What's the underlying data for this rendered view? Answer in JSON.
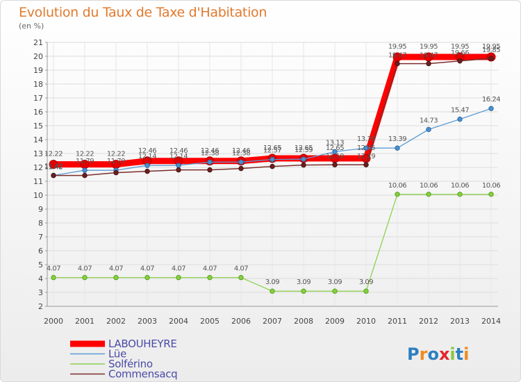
{
  "chart_data": {
    "type": "line",
    "title": "Evolution du Taux de Taxe d'Habitation",
    "unit_label": "(en %)",
    "x": [
      "2000",
      "2001",
      "2002",
      "2003",
      "2004",
      "2005",
      "2006",
      "2007",
      "2008",
      "2009",
      "2010",
      "2011",
      "2012",
      "2013",
      "2014"
    ],
    "ylim": [
      2,
      21
    ],
    "yticks": [
      2,
      3,
      4,
      5,
      6,
      7,
      8,
      9,
      10,
      11,
      12,
      13,
      14,
      15,
      16,
      17,
      18,
      19,
      20,
      21
    ],
    "grid": true,
    "legend_position": "bottom-left",
    "series": [
      {
        "name": "LABOUHEYRE",
        "color": "#ff0000",
        "values": [
          12.22,
          12.22,
          12.22,
          12.46,
          12.46,
          12.46,
          12.46,
          12.65,
          12.65,
          12.65,
          12.65,
          19.95,
          19.95,
          19.95,
          19.95
        ],
        "labels": [
          "12.22",
          "12.22",
          "12.22",
          "12.46",
          "12.46",
          "12.46",
          "12.46",
          "12.65",
          "12.65",
          "12.65",
          "12.65",
          "19.95",
          "19.95",
          "19.95",
          "19.95"
        ]
      },
      {
        "name": "Lüe",
        "color": "#5b9bd5",
        "values": [
          11.42,
          11.79,
          11.79,
          12.14,
          12.14,
          12.38,
          12.38,
          12.57,
          12.59,
          13.13,
          13.39,
          13.39,
          14.73,
          15.47,
          16.24
        ],
        "labels": [
          "11.42",
          "11.79",
          "11.79",
          "12.14",
          "12.14",
          "12.38",
          "12.38",
          "12.57",
          "12.59",
          "13.13",
          "13.39",
          "13.39",
          "14.73",
          "15.47",
          "16.24"
        ]
      },
      {
        "name": "Solférino",
        "color": "#8fd14f",
        "values": [
          4.07,
          4.07,
          4.07,
          4.07,
          4.07,
          4.07,
          4.07,
          3.09,
          3.09,
          3.09,
          3.09,
          10.06,
          10.06,
          10.06,
          10.06
        ],
        "labels": [
          "4.07",
          "4.07",
          "4.07",
          "4.07",
          "4.07",
          "4.07",
          "4.07",
          "3.09",
          "3.09",
          "3.09",
          "3.09",
          "10.06",
          "10.06",
          "10.06",
          "10.06"
        ]
      },
      {
        "name": "Commensacq",
        "color": "#7b2c2c",
        "values": [
          11.42,
          11.42,
          11.62,
          11.72,
          11.82,
          11.82,
          11.92,
          12.07,
          12.17,
          12.19,
          12.19,
          19.47,
          19.47,
          19.66,
          19.85
        ],
        "labels": [
          "11.42",
          "",
          "",
          "",
          "",
          "",
          "",
          "",
          "",
          "12.19",
          "12.19",
          "19.47",
          "19.47",
          "19.66",
          "19.85"
        ]
      }
    ]
  },
  "brand": {
    "logo_letters": [
      "P",
      "r",
      "o",
      "x",
      "i",
      "t",
      "i"
    ]
  }
}
